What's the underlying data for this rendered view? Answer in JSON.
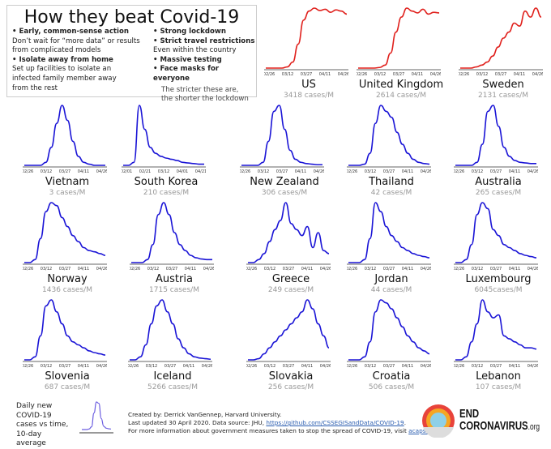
{
  "info": {
    "title": "How they beat Covid-19",
    "left": [
      {
        "bold": "•  Early, common-sense action",
        "text": "Don’t wait for “more data” or results from complicated models"
      },
      {
        "bold": "•  Isolate away from home",
        "text": "Set up facilities to isolate an infected family member away from the rest"
      }
    ],
    "right": {
      "b1": "•  Strong lockdown",
      "b2": "•  Strict travel restrictions",
      "t2": "Even within the country",
      "b3": "•  Massive testing",
      "b4": "•  Face masks for everyone",
      "note1": "The stricter these are,",
      "note2": "the shorter the lockdown"
    }
  },
  "colors": {
    "primary": "#1a14d6",
    "top_row": "#e0201c"
  },
  "chart_data": [
    {
      "type": "line",
      "name": "US",
      "subtitle": "3418 cases/M",
      "color": "#e0201c",
      "x_ticks": [
        "02/26",
        "03/12",
        "03/27",
        "04/11",
        "04/26"
      ],
      "values": [
        0,
        0,
        0,
        0,
        2,
        10,
        40,
        80,
        95,
        100,
        96,
        98,
        93,
        97,
        95,
        90
      ]
    },
    {
      "type": "line",
      "name": "United Kingdom",
      "subtitle": "2614 cases/M",
      "color": "#e0201c",
      "x_ticks": [
        "02/26",
        "03/12",
        "03/27",
        "04/11",
        "04/26"
      ],
      "values": [
        0,
        0,
        0,
        0,
        1,
        5,
        25,
        60,
        85,
        100,
        95,
        92,
        98,
        90,
        93,
        92
      ]
    },
    {
      "type": "line",
      "name": "Sweden",
      "subtitle": "2131 cases/M",
      "color": "#e0201c",
      "x_ticks": [
        "02/26",
        "03/12",
        "03/27",
        "04/11",
        "04/26"
      ],
      "values": [
        0,
        0,
        0,
        2,
        5,
        10,
        20,
        35,
        50,
        60,
        75,
        70,
        95,
        85,
        100,
        85
      ]
    },
    {
      "type": "line",
      "name": "Vietnam",
      "subtitle": "3 cases/M",
      "color": "#1a14d6",
      "x_ticks": [
        "02/26",
        "03/12",
        "03/27",
        "04/11",
        "04/26"
      ],
      "values": [
        0,
        0,
        0,
        0,
        5,
        30,
        70,
        100,
        75,
        40,
        15,
        5,
        2,
        0,
        0,
        0
      ]
    },
    {
      "type": "line",
      "name": "South Korea",
      "subtitle": "210 cases/M",
      "color": "#1a14d6",
      "x_ticks": [
        "02/01",
        "02/21",
        "03/12",
        "04/01",
        "04/21"
      ],
      "values": [
        0,
        0,
        5,
        100,
        60,
        30,
        20,
        15,
        12,
        10,
        8,
        5,
        4,
        3,
        2,
        2
      ]
    },
    {
      "type": "line",
      "name": "New Zealand",
      "subtitle": "306 cases/M",
      "color": "#1a14d6",
      "x_ticks": [
        "02/26",
        "03/12",
        "03/27",
        "04/11",
        "04/26"
      ],
      "values": [
        0,
        0,
        0,
        0,
        5,
        40,
        90,
        100,
        60,
        25,
        10,
        5,
        3,
        2,
        1,
        1
      ]
    },
    {
      "type": "line",
      "name": "Thailand",
      "subtitle": "42 cases/M",
      "color": "#1a14d6",
      "x_ticks": [
        "02/26",
        "03/12",
        "03/27",
        "04/11",
        "04/26"
      ],
      "values": [
        0,
        0,
        0,
        2,
        20,
        70,
        100,
        90,
        80,
        55,
        35,
        20,
        10,
        5,
        3,
        2
      ]
    },
    {
      "type": "line",
      "name": "Australia",
      "subtitle": "265 cases/M",
      "color": "#1a14d6",
      "x_ticks": [
        "02/26",
        "03/12",
        "03/27",
        "04/11",
        "04/26"
      ],
      "values": [
        0,
        0,
        0,
        0,
        5,
        35,
        90,
        100,
        65,
        30,
        15,
        8,
        5,
        4,
        3,
        3
      ]
    },
    {
      "type": "line",
      "name": "Norway",
      "subtitle": "1436 cases/M",
      "color": "#1a14d6",
      "x_ticks": [
        "02/26",
        "03/12",
        "03/27",
        "04/11",
        "04/26"
      ],
      "values": [
        0,
        0,
        5,
        40,
        85,
        100,
        95,
        75,
        60,
        45,
        35,
        25,
        20,
        18,
        15,
        12
      ]
    },
    {
      "type": "line",
      "name": "Austria",
      "subtitle": "1715 cases/M",
      "color": "#1a14d6",
      "x_ticks": [
        "02/26",
        "03/12",
        "03/27",
        "04/11",
        "04/26"
      ],
      "values": [
        0,
        0,
        0,
        5,
        30,
        80,
        100,
        80,
        50,
        30,
        20,
        12,
        8,
        6,
        5,
        5
      ]
    },
    {
      "type": "line",
      "name": "Greece",
      "subtitle": "249 cases/M",
      "color": "#1a14d6",
      "x_ticks": [
        "02/26",
        "03/12",
        "03/27",
        "04/11",
        "04/26"
      ],
      "values": [
        0,
        0,
        5,
        15,
        35,
        55,
        70,
        100,
        65,
        55,
        45,
        60,
        25,
        50,
        20,
        15
      ]
    },
    {
      "type": "line",
      "name": "Jordan",
      "subtitle": "44 cases/M",
      "color": "#1a14d6",
      "x_ticks": [
        "02/26",
        "03/12",
        "03/27",
        "04/11",
        "04/26"
      ],
      "values": [
        0,
        0,
        0,
        5,
        40,
        100,
        85,
        60,
        45,
        35,
        25,
        20,
        15,
        12,
        10,
        8
      ]
    },
    {
      "type": "line",
      "name": "Luxembourg",
      "subtitle": "6045cases/M",
      "color": "#1a14d6",
      "x_ticks": [
        "02/26",
        "03/12",
        "03/27",
        "04/11",
        "04/26"
      ],
      "values": [
        0,
        0,
        5,
        30,
        80,
        100,
        90,
        55,
        45,
        30,
        25,
        20,
        15,
        12,
        10,
        8
      ]
    },
    {
      "type": "line",
      "name": "Slovenia",
      "subtitle": "687 cases/M",
      "color": "#1a14d6",
      "x_ticks": [
        "02/26",
        "03/12",
        "03/27",
        "04/11",
        "04/26"
      ],
      "values": [
        0,
        0,
        5,
        40,
        90,
        100,
        80,
        60,
        40,
        30,
        25,
        20,
        15,
        12,
        10,
        8
      ]
    },
    {
      "type": "line",
      "name": "Iceland",
      "subtitle": "5266 cases/M",
      "color": "#1a14d6",
      "x_ticks": [
        "02/26",
        "03/12",
        "03/27",
        "04/11",
        "04/26"
      ],
      "values": [
        0,
        0,
        5,
        25,
        60,
        90,
        100,
        80,
        60,
        35,
        20,
        10,
        5,
        3,
        2,
        1
      ]
    },
    {
      "type": "line",
      "name": "Slovakia",
      "subtitle": "256 cases/M",
      "color": "#1a14d6",
      "x_ticks": [
        "02/26",
        "03/12",
        "03/27",
        "04/11",
        "04/26"
      ],
      "values": [
        0,
        0,
        2,
        10,
        20,
        30,
        40,
        50,
        60,
        70,
        80,
        100,
        85,
        60,
        40,
        20
      ]
    },
    {
      "type": "line",
      "name": "Croatia",
      "subtitle": "506 cases/M",
      "color": "#1a14d6",
      "x_ticks": [
        "02/26",
        "03/12",
        "03/27",
        "04/11",
        "04/26"
      ],
      "values": [
        0,
        0,
        0,
        5,
        30,
        80,
        100,
        95,
        85,
        70,
        55,
        40,
        30,
        20,
        15,
        10
      ]
    },
    {
      "type": "line",
      "name": "Lebanon",
      "subtitle": "107 cases/M",
      "color": "#1a14d6",
      "x_ticks": [
        "02/26",
        "03/12",
        "03/27",
        "04/11",
        "04/26"
      ],
      "values": [
        0,
        0,
        5,
        30,
        60,
        100,
        80,
        70,
        75,
        40,
        35,
        30,
        25,
        20,
        20,
        18
      ]
    }
  ],
  "legend": {
    "text": "Daily new COVID-19 cases vs time, 10-day average",
    "values": [
      0,
      0,
      0,
      2,
      10,
      60,
      100,
      95,
      40,
      12,
      5,
      3,
      2
    ]
  },
  "credits": {
    "line1": "Created by: Derrick VanGennep, Harvard University.",
    "line2_prefix": "Last updated 30 April 2020. Data source: JHU, ",
    "line2_link": "https://github.com/CSSEGISandData/COVID-19",
    "line2_suffix": ".",
    "line3_prefix": "For more information about government measures taken to stop the spread of COVID-19, visit ",
    "line3_link": "acaps.org",
    "line3_suffix": "."
  },
  "logo": {
    "line1": "END",
    "line2": "CORONAVIRUS",
    "suffix": ".org"
  }
}
